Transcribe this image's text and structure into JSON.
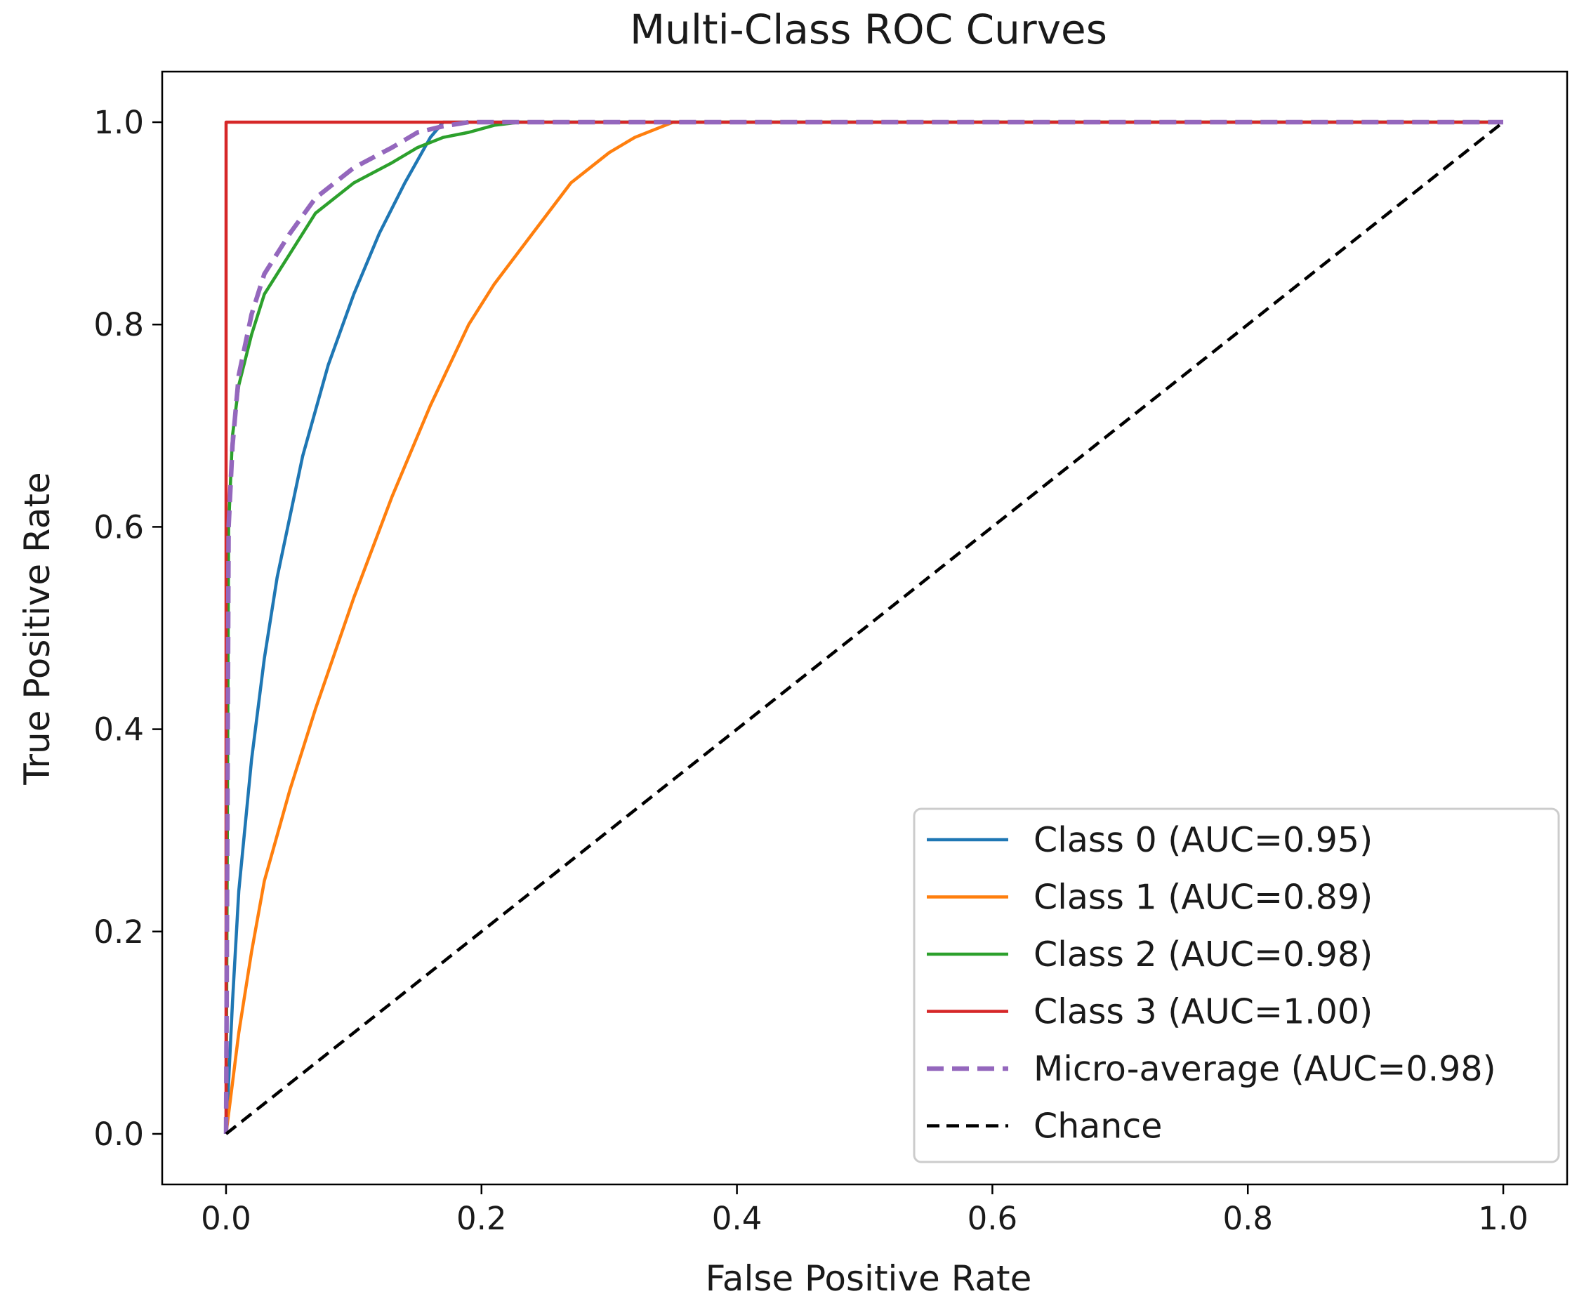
{
  "chart_data": {
    "type": "line",
    "title": "Multi-Class ROC Curves",
    "xlabel": "False Positive Rate",
    "ylabel": "True Positive Rate",
    "xlim": [
      -0.05,
      1.05
    ],
    "ylim": [
      -0.05,
      1.05
    ],
    "grid": false,
    "legend_position": "lower-right",
    "xticks": [
      0.0,
      0.2,
      0.4,
      0.6,
      0.8,
      1.0
    ],
    "xtick_labels": [
      "0.0",
      "0.2",
      "0.4",
      "0.6",
      "0.8",
      "1.0"
    ],
    "yticks": [
      0.0,
      0.2,
      0.4,
      0.6,
      0.8,
      1.0
    ],
    "ytick_labels": [
      "0.0",
      "0.2",
      "0.4",
      "0.6",
      "0.8",
      "1.0"
    ],
    "series": [
      {
        "name": "Class 0 (AUC=0.95)",
        "color": "#1f77b4",
        "style": "solid",
        "x": [
          0.0,
          0.005,
          0.01,
          0.02,
          0.03,
          0.04,
          0.06,
          0.08,
          0.1,
          0.12,
          0.14,
          0.16,
          0.17,
          0.18,
          0.2,
          1.0
        ],
        "y": [
          0.0,
          0.13,
          0.24,
          0.37,
          0.47,
          0.55,
          0.67,
          0.76,
          0.83,
          0.89,
          0.94,
          0.985,
          1.0,
          1.0,
          1.0,
          1.0
        ]
      },
      {
        "name": "Class 1 (AUC=0.89)",
        "color": "#ff7f0e",
        "style": "solid",
        "x": [
          0.0,
          0.01,
          0.02,
          0.03,
          0.05,
          0.07,
          0.1,
          0.13,
          0.16,
          0.19,
          0.21,
          0.24,
          0.27,
          0.3,
          0.32,
          0.34,
          0.35,
          0.36,
          1.0
        ],
        "y": [
          0.0,
          0.1,
          0.18,
          0.25,
          0.34,
          0.42,
          0.53,
          0.63,
          0.72,
          0.8,
          0.84,
          0.89,
          0.94,
          0.97,
          0.985,
          0.995,
          1.0,
          1.0,
          1.0
        ]
      },
      {
        "name": "Class 2 (AUC=0.98)",
        "color": "#2ca02c",
        "style": "solid",
        "x": [
          0.0,
          0.002,
          0.005,
          0.01,
          0.02,
          0.03,
          0.05,
          0.07,
          0.1,
          0.13,
          0.15,
          0.17,
          0.19,
          0.21,
          0.23,
          1.0
        ],
        "y": [
          0.0,
          0.6,
          0.69,
          0.74,
          0.79,
          0.83,
          0.87,
          0.91,
          0.94,
          0.96,
          0.975,
          0.985,
          0.99,
          0.997,
          1.0,
          1.0
        ]
      },
      {
        "name": "Class 3 (AUC=1.00)",
        "color": "#d62728",
        "style": "solid",
        "x": [
          0.0,
          0.0,
          0.0,
          1.0
        ],
        "y": [
          0.0,
          0.62,
          1.0,
          1.0
        ]
      },
      {
        "name": "Micro-average (AUC=0.98)",
        "color": "#9467bd",
        "style": "dashed",
        "x": [
          0.0,
          0.002,
          0.005,
          0.01,
          0.02,
          0.03,
          0.05,
          0.07,
          0.1,
          0.13,
          0.15,
          0.17,
          0.19,
          1.0
        ],
        "y": [
          0.0,
          0.6,
          0.68,
          0.75,
          0.81,
          0.85,
          0.89,
          0.925,
          0.955,
          0.975,
          0.99,
          0.996,
          1.0,
          1.0
        ]
      },
      {
        "name": "Chance",
        "color": "#000000",
        "style": "dashed",
        "x": [
          0.0,
          1.0
        ],
        "y": [
          0.0,
          1.0
        ]
      }
    ]
  }
}
